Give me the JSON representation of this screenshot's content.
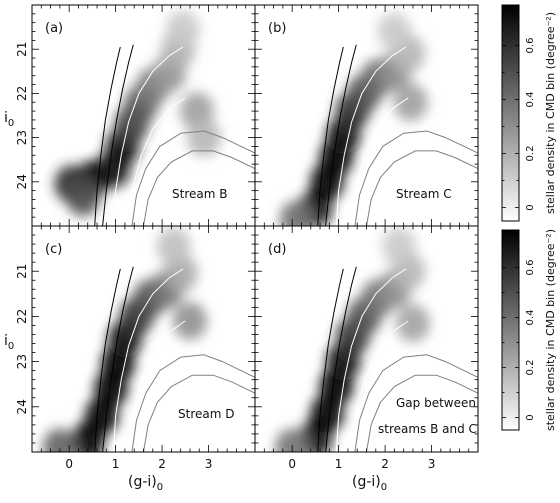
{
  "chart_data": [
    {
      "type": "heatmap",
      "panel": "(a)",
      "annotation": "Stream B",
      "xlabel": "",
      "ylabel": "i",
      "ylabel_sub": "0",
      "xlim": [
        -0.8,
        4.0
      ],
      "ylim": [
        25.0,
        20.0
      ],
      "yticks": [
        "21",
        "22",
        "23",
        "24"
      ],
      "xticks": [],
      "density_blobs": [
        {
          "x": 0.5,
          "y": 23.95,
          "v": 0.78
        },
        {
          "x": 0.05,
          "y": 24.05,
          "v": 0.62
        },
        {
          "x": 0.3,
          "y": 24.35,
          "v": 0.5
        },
        {
          "x": 0.95,
          "y": 23.7,
          "v": 0.72
        },
        {
          "x": 1.15,
          "y": 23.2,
          "v": 0.7
        },
        {
          "x": 1.35,
          "y": 22.7,
          "v": 0.55
        },
        {
          "x": 1.55,
          "y": 22.25,
          "v": 0.48
        },
        {
          "x": 1.8,
          "y": 21.85,
          "v": 0.36
        },
        {
          "x": 2.15,
          "y": 21.55,
          "v": 0.28
        },
        {
          "x": 2.35,
          "y": 21.0,
          "v": 0.2
        },
        {
          "x": 2.75,
          "y": 22.4,
          "v": 0.25
        },
        {
          "x": 2.9,
          "y": 23.0,
          "v": 0.18
        },
        {
          "x": 2.45,
          "y": 20.55,
          "v": 0.12
        }
      ],
      "color_scale": {
        "min": -0.05,
        "max": 0.75
      }
    },
    {
      "type": "heatmap",
      "panel": "(b)",
      "annotation": "Stream C",
      "xlabel": "",
      "ylabel": "",
      "xlim": [
        -0.8,
        4.0
      ],
      "ylim": [
        25.0,
        20.0
      ],
      "xticks": [],
      "yticks": [],
      "density_blobs": [
        {
          "x": 0.5,
          "y": 24.6,
          "v": 0.72
        },
        {
          "x": 0.75,
          "y": 24.0,
          "v": 0.78
        },
        {
          "x": 0.95,
          "y": 23.45,
          "v": 0.78
        },
        {
          "x": 1.1,
          "y": 22.95,
          "v": 0.72
        },
        {
          "x": 1.3,
          "y": 22.4,
          "v": 0.62
        },
        {
          "x": 1.55,
          "y": 22.0,
          "v": 0.5
        },
        {
          "x": 1.85,
          "y": 21.65,
          "v": 0.42
        },
        {
          "x": 2.2,
          "y": 21.5,
          "v": 0.3
        },
        {
          "x": 2.5,
          "y": 21.1,
          "v": 0.18
        },
        {
          "x": 2.55,
          "y": 22.2,
          "v": 0.25
        },
        {
          "x": 2.2,
          "y": 20.6,
          "v": 0.12
        },
        {
          "x": 0.1,
          "y": 24.85,
          "v": 0.4
        }
      ],
      "color_scale": {
        "min": -0.05,
        "max": 0.75
      }
    },
    {
      "type": "heatmap",
      "panel": "(c)",
      "annotation": "Stream D",
      "xlabel": "(g-i)",
      "xlabel_sub": "0",
      "ylabel": "i",
      "ylabel_sub": "0",
      "xlim": [
        -0.8,
        4.0
      ],
      "ylim": [
        25.0,
        20.0
      ],
      "xticks": [
        "0",
        "1",
        "2",
        "3"
      ],
      "yticks": [
        "21",
        "22",
        "23",
        "24"
      ],
      "density_blobs": [
        {
          "x": 0.4,
          "y": 24.75,
          "v": 0.8
        },
        {
          "x": 0.7,
          "y": 24.2,
          "v": 0.82
        },
        {
          "x": 0.9,
          "y": 23.6,
          "v": 0.82
        },
        {
          "x": 1.05,
          "y": 23.05,
          "v": 0.8
        },
        {
          "x": 1.2,
          "y": 22.5,
          "v": 0.72
        },
        {
          "x": 1.45,
          "y": 22.0,
          "v": 0.6
        },
        {
          "x": 1.75,
          "y": 21.6,
          "v": 0.5
        },
        {
          "x": 2.1,
          "y": 21.4,
          "v": 0.38
        },
        {
          "x": 2.4,
          "y": 21.05,
          "v": 0.22
        },
        {
          "x": 2.6,
          "y": 22.1,
          "v": 0.3
        },
        {
          "x": 2.25,
          "y": 20.45,
          "v": 0.15
        },
        {
          "x": -0.2,
          "y": 24.9,
          "v": 0.45
        }
      ],
      "color_scale": {
        "min": -0.05,
        "max": 0.75
      }
    },
    {
      "type": "heatmap",
      "panel": "(d)",
      "annotation_lines": [
        "Gap between",
        "streams B and C"
      ],
      "xlabel": "(g-i)",
      "xlabel_sub": "0",
      "ylabel": "",
      "xlim": [
        -0.8,
        4.0
      ],
      "ylim": [
        25.0,
        20.0
      ],
      "xticks": [
        "0",
        "1",
        "2",
        "3"
      ],
      "yticks": [],
      "density_blobs": [
        {
          "x": 0.5,
          "y": 24.7,
          "v": 0.72
        },
        {
          "x": 0.75,
          "y": 24.15,
          "v": 0.76
        },
        {
          "x": 0.95,
          "y": 23.55,
          "v": 0.74
        },
        {
          "x": 1.1,
          "y": 23.0,
          "v": 0.7
        },
        {
          "x": 1.3,
          "y": 22.45,
          "v": 0.6
        },
        {
          "x": 1.55,
          "y": 22.0,
          "v": 0.5
        },
        {
          "x": 1.85,
          "y": 21.6,
          "v": 0.4
        },
        {
          "x": 2.2,
          "y": 21.4,
          "v": 0.3
        },
        {
          "x": 2.5,
          "y": 21.0,
          "v": 0.18
        },
        {
          "x": 2.6,
          "y": 22.15,
          "v": 0.24
        },
        {
          "x": 2.3,
          "y": 20.45,
          "v": 0.12
        },
        {
          "x": 0.0,
          "y": 24.9,
          "v": 0.38
        }
      ],
      "color_scale": {
        "min": -0.05,
        "max": 0.75
      }
    }
  ],
  "isochrones": {
    "black": [
      [
        [
          0.55,
          25.0
        ],
        [
          0.6,
          24.2
        ],
        [
          0.68,
          23.4
        ],
        [
          0.78,
          22.6
        ],
        [
          0.9,
          21.9
        ],
        [
          1.02,
          21.3
        ],
        [
          1.1,
          20.95
        ]
      ],
      [
        [
          0.72,
          25.0
        ],
        [
          0.8,
          24.2
        ],
        [
          0.9,
          23.4
        ],
        [
          1.02,
          22.6
        ],
        [
          1.15,
          21.9
        ],
        [
          1.28,
          21.3
        ],
        [
          1.38,
          20.9
        ]
      ]
    ],
    "white": [
      [
        [
          0.95,
          25.0
        ],
        [
          1.0,
          24.2
        ],
        [
          1.12,
          23.4
        ],
        [
          1.28,
          22.65
        ],
        [
          1.5,
          22.0
        ],
        [
          1.8,
          21.5
        ],
        [
          2.15,
          21.15
        ],
        [
          2.45,
          20.95
        ]
      ],
      [
        [
          1.25,
          25.0
        ],
        [
          1.35,
          24.2
        ],
        [
          1.55,
          23.4
        ],
        [
          1.8,
          22.8
        ],
        [
          2.15,
          22.35
        ],
        [
          2.5,
          22.1
        ]
      ]
    ],
    "grey": [
      [
        [
          1.35,
          25.0
        ],
        [
          1.45,
          24.3
        ],
        [
          1.65,
          23.7
        ],
        [
          1.95,
          23.2
        ],
        [
          2.4,
          22.9
        ],
        [
          2.9,
          22.85
        ],
        [
          3.3,
          23.0
        ],
        [
          4.0,
          23.35
        ]
      ],
      [
        [
          1.6,
          25.0
        ],
        [
          1.7,
          24.4
        ],
        [
          1.9,
          23.9
        ],
        [
          2.2,
          23.55
        ],
        [
          2.65,
          23.3
        ],
        [
          3.1,
          23.3
        ],
        [
          3.5,
          23.45
        ],
        [
          4.0,
          23.7
        ]
      ]
    ]
  },
  "colorbar": {
    "label": "stellar density in CMD bin (degree⁻²)",
    "ticks": [
      "0",
      "0.2",
      "0.4",
      "0.6"
    ],
    "tick_values": [
      0,
      0.2,
      0.4,
      0.6
    ],
    "min": -0.05,
    "max": 0.75
  },
  "colors": {
    "frame": "#000000",
    "background": "#ffffff",
    "isochrone_black": "#000000",
    "isochrone_white": "#ffffff",
    "isochrone_grey": "#808080"
  }
}
